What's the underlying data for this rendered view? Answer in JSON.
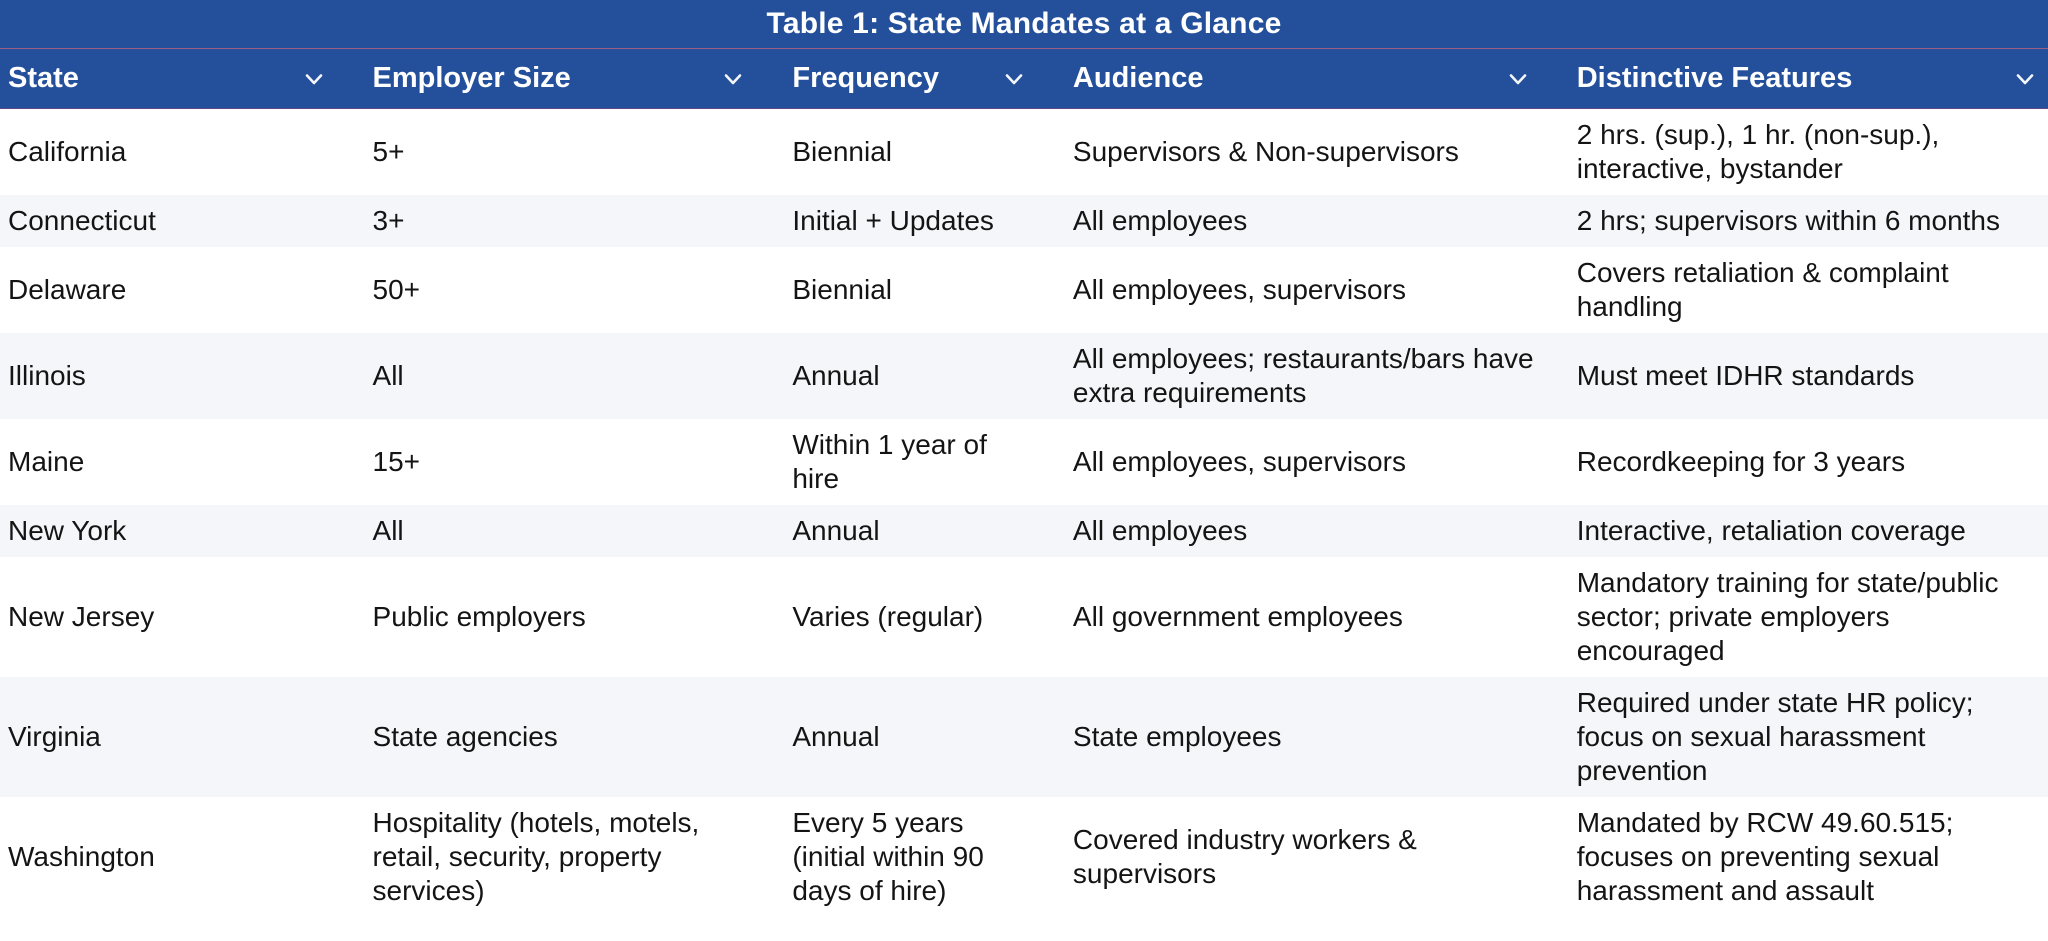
{
  "colors": {
    "header_bg": "#24509b",
    "header_text": "#ffffff",
    "row_alt_bg": "#f5f6f9",
    "body_text": "#141414"
  },
  "table": {
    "title": "Table 1: State Mandates at a Glance",
    "header_icon": "chevron-down-icon",
    "columns": [
      {
        "label": "State"
      },
      {
        "label": "Employer Size"
      },
      {
        "label": "Frequency"
      },
      {
        "label": "Audience"
      },
      {
        "label": "Distinctive Features"
      }
    ],
    "rows": [
      {
        "state": "California",
        "employer_size": "5+",
        "frequency": "Biennial",
        "audience": "Supervisors & Non-supervisors",
        "distinctive_features": "2 hrs. (sup.), 1 hr. (non-sup.), interactive, bystander"
      },
      {
        "state": "Connecticut",
        "employer_size": "3+",
        "frequency": "Initial + Updates",
        "audience": "All employees",
        "distinctive_features": "2 hrs; supervisors within 6 months"
      },
      {
        "state": "Delaware",
        "employer_size": "50+",
        "frequency": "Biennial",
        "audience": "All employees, supervisors",
        "distinctive_features": "Covers retaliation & complaint handling"
      },
      {
        "state": "Illinois",
        "employer_size": "All",
        "frequency": "Annual",
        "audience": "All employees; restaurants/bars have extra requirements",
        "distinctive_features": "Must meet IDHR standards"
      },
      {
        "state": "Maine",
        "employer_size": "15+",
        "frequency": "Within 1 year of hire",
        "audience": "All employees, supervisors",
        "distinctive_features": "Recordkeeping for 3 years"
      },
      {
        "state": "New York",
        "employer_size": "All",
        "frequency": "Annual",
        "audience": "All employees",
        "distinctive_features": "Interactive, retaliation coverage"
      },
      {
        "state": "New Jersey",
        "employer_size": "Public employers",
        "frequency": "Varies (regular)",
        "audience": "All government employees",
        "distinctive_features": "Mandatory training for state/public sector; private employers encouraged"
      },
      {
        "state": "Virginia",
        "employer_size": "State agencies",
        "frequency": "Annual",
        "audience": "State employees",
        "distinctive_features": "Required under state HR policy; focus on sexual harassment prevention"
      },
      {
        "state": "Washington",
        "employer_size": "Hospitality (hotels, motels, retail, security, property services)",
        "frequency": "Every 5 years (initial within 90 days of hire)",
        "audience": "Covered industry workers & supervisors",
        "distinctive_features": "Mandated by RCW 49.60.515; focuses on preventing sexual harassment and assault"
      }
    ]
  }
}
